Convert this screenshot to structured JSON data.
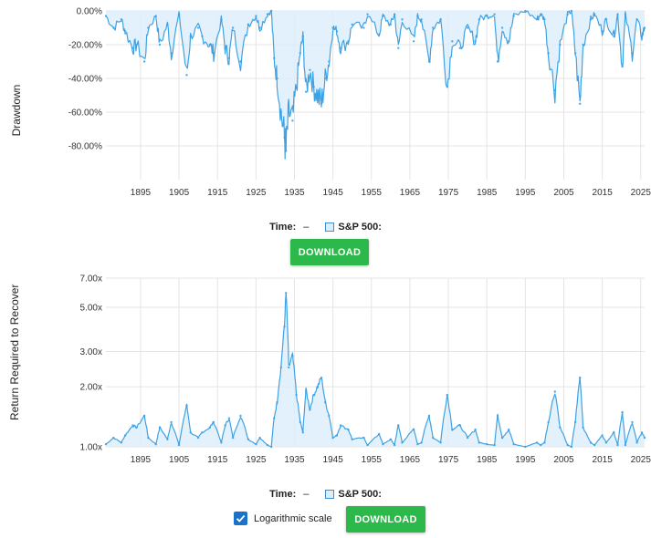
{
  "colors": {
    "line": "#3ea2e4",
    "fill": "#dcedfb",
    "grid": "#e4e4e4",
    "button": "#2db84b"
  },
  "top": {
    "ylabel": "Drawdown",
    "legend_time_label": "Time:",
    "legend_time_value": "–",
    "legend_series_label": "S&P 500:",
    "download_label": "DOWNLOAD"
  },
  "bottom": {
    "ylabel": "Return Required to Recover",
    "legend_time_label": "Time:",
    "legend_time_value": "–",
    "legend_series_label": "S&P 500:",
    "download_label": "DOWNLOAD",
    "log_label": "Logarithmic scale",
    "log_checked": true
  },
  "chart_data": [
    {
      "type": "area",
      "ylabel": "Drawdown",
      "xlim": [
        1886,
        2026
      ],
      "ylim": [
        -100,
        0
      ],
      "x_ticks": [
        1895,
        1905,
        1915,
        1925,
        1935,
        1945,
        1955,
        1965,
        1975,
        1985,
        1995,
        2005,
        2015,
        2025
      ],
      "y_ticks": [
        0,
        -20,
        -40,
        -60,
        -80
      ],
      "y_tick_labels": [
        "0.00%",
        "-20.00%",
        "-40.00%",
        "-60.00%",
        "-80.00%"
      ],
      "grid": true,
      "series": [
        {
          "x": [
            1886,
            1888,
            1890,
            1891,
            1893,
            1894,
            1896,
            1897,
            1899,
            1900,
            1902,
            1903,
            1905,
            1907,
            1908,
            1910,
            1911,
            1913,
            1914,
            1916,
            1917,
            1918,
            1919,
            1921,
            1923,
            1925,
            1926,
            1928,
            1929,
            1929.7,
            1930.5,
            1931.5,
            1932.4,
            1932.8,
            1933.5,
            1934.5,
            1935.5,
            1936.5,
            1937.2,
            1938,
            1939,
            1940,
            1941,
            1942,
            1943,
            1944,
            1945,
            1946,
            1947,
            1949,
            1950,
            1953,
            1954,
            1957,
            1958,
            1960,
            1961,
            1962,
            1963,
            1966,
            1967,
            1968,
            1970,
            1971,
            1973,
            1974.7,
            1976,
            1978,
            1980,
            1982,
            1983,
            1985,
            1987,
            1987.8,
            1989,
            1990.7,
            1992,
            1995,
            1998,
            1999,
            2000,
            2001,
            2002.7,
            2004,
            2006,
            2007,
            2008,
            2009.2,
            2010,
            2012,
            2013,
            2015,
            2016,
            2018,
            2019,
            2020.2,
            2021,
            2022.8,
            2024,
            2025.3,
            2026
          ],
          "values": [
            -3,
            -10,
            -5,
            -12,
            -22,
            -20,
            -30,
            -10,
            -3,
            -20,
            -8,
            -25,
            -2,
            -38,
            -15,
            -10,
            -15,
            -20,
            -25,
            -5,
            -22,
            -28,
            -10,
            -30,
            -8,
            -3,
            -10,
            -2,
            0,
            -28,
            -40,
            -60,
            -75,
            -83,
            -60,
            -65,
            -45,
            -25,
            -15,
            -48,
            -35,
            -45,
            -50,
            -55,
            -40,
            -30,
            -10,
            -12,
            -22,
            -18,
            -8,
            -10,
            -2,
            -14,
            -3,
            -8,
            -2,
            -22,
            -5,
            -18,
            -3,
            -5,
            -30,
            -10,
            -5,
            -45,
            -18,
            -22,
            -10,
            -18,
            -5,
            -3,
            -2,
            -30,
            -10,
            -18,
            -3,
            0,
            -5,
            -2,
            -5,
            -25,
            -47,
            -20,
            -2,
            0,
            -25,
            -55,
            -20,
            -5,
            -2,
            -12,
            -5,
            -15,
            -2,
            -33,
            -2,
            -25,
            -5,
            -15,
            -10
          ]
        }
      ]
    },
    {
      "type": "area",
      "ylabel": "Return Required to Recover",
      "log_scale": true,
      "xlim": [
        1886,
        2026
      ],
      "ylim": [
        1,
        7
      ],
      "x_ticks": [
        1895,
        1905,
        1915,
        1925,
        1935,
        1945,
        1955,
        1965,
        1975,
        1985,
        1995,
        2005,
        2015,
        2025
      ],
      "y_ticks": [
        1,
        2,
        3,
        5,
        7
      ],
      "y_tick_labels": [
        "1.00x",
        "2.00x",
        "3.00x",
        "5.00x",
        "7.00x"
      ],
      "grid": true,
      "series": [
        {
          "x": [
            1886,
            1888,
            1890,
            1891,
            1893,
            1894,
            1896,
            1897,
            1899,
            1900,
            1902,
            1903,
            1905,
            1907,
            1908,
            1910,
            1911,
            1913,
            1914,
            1916,
            1917,
            1918,
            1919,
            1921,
            1923,
            1925,
            1926,
            1928,
            1929,
            1929.7,
            1930.5,
            1931.5,
            1932.4,
            1932.8,
            1933.5,
            1934.5,
            1935.5,
            1936.5,
            1937.2,
            1938,
            1939,
            1940,
            1941,
            1942,
            1943,
            1944,
            1945,
            1946,
            1947,
            1949,
            1950,
            1953,
            1954,
            1957,
            1958,
            1960,
            1961,
            1962,
            1963,
            1966,
            1967,
            1968,
            1970,
            1971,
            1973,
            1974.7,
            1976,
            1978,
            1980,
            1982,
            1983,
            1985,
            1987,
            1987.8,
            1989,
            1990.7,
            1992,
            1995,
            1998,
            1999,
            2000,
            2001,
            2002.7,
            2004,
            2006,
            2007,
            2008,
            2009.2,
            2010,
            2012,
            2013,
            2015,
            2016,
            2018,
            2019,
            2020.2,
            2021,
            2022.8,
            2024,
            2025.3,
            2026
          ],
          "values": [
            1.03,
            1.11,
            1.05,
            1.14,
            1.28,
            1.25,
            1.43,
            1.11,
            1.03,
            1.25,
            1.09,
            1.33,
            1.02,
            1.61,
            1.18,
            1.11,
            1.18,
            1.25,
            1.33,
            1.05,
            1.28,
            1.39,
            1.11,
            1.43,
            1.09,
            1.03,
            1.11,
            1.02,
            1.0,
            1.39,
            1.67,
            2.5,
            4.0,
            5.9,
            2.5,
            2.86,
            1.82,
            1.33,
            1.18,
            1.92,
            1.54,
            1.82,
            2.0,
            2.22,
            1.67,
            1.43,
            1.11,
            1.14,
            1.28,
            1.22,
            1.09,
            1.11,
            1.02,
            1.16,
            1.03,
            1.09,
            1.02,
            1.28,
            1.05,
            1.22,
            1.03,
            1.05,
            1.43,
            1.11,
            1.05,
            1.82,
            1.22,
            1.28,
            1.11,
            1.22,
            1.05,
            1.03,
            1.02,
            1.43,
            1.11,
            1.22,
            1.03,
            1.0,
            1.05,
            1.02,
            1.05,
            1.33,
            1.89,
            1.25,
            1.02,
            1.0,
            1.33,
            2.22,
            1.25,
            1.05,
            1.02,
            1.14,
            1.05,
            1.18,
            1.02,
            1.49,
            1.02,
            1.33,
            1.05,
            1.18,
            1.11
          ]
        }
      ]
    }
  ]
}
